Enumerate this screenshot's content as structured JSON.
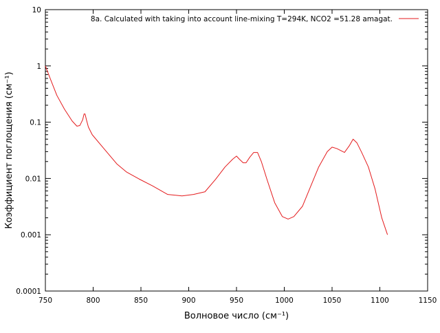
{
  "chart_data": {
    "type": "line",
    "title": "",
    "xlabel": "Волновое число (см⁻¹)",
    "ylabel": "Коэффициент поглощения (см⁻¹)",
    "xlim": [
      750,
      1150
    ],
    "ylim": [
      0.0001,
      10
    ],
    "yscale": "log",
    "grid": false,
    "legend_position": "top-right",
    "x_ticks": [
      750,
      800,
      850,
      900,
      950,
      1000,
      1050,
      1100,
      1150
    ],
    "x_tick_labels": [
      "750",
      "800",
      "850",
      "900",
      "950",
      "1000",
      "1050",
      "1100",
      "1150"
    ],
    "y_ticks": [
      0.0001,
      0.001,
      0.01,
      0.1,
      1,
      10
    ],
    "y_tick_labels": [
      "0.0001",
      "0.001",
      "0.01",
      "0.1",
      "1",
      "10"
    ],
    "series": [
      {
        "name": "8a. Calculated with taking into account line-mixing T=294K, NCO2 =51.28 amagat.",
        "color": "#e41a1c",
        "x": [
          750,
          755,
          762,
          770,
          778,
          783,
          786,
          789,
          790.5,
          791.5,
          793,
          795,
          799,
          810,
          825,
          835,
          848,
          862,
          878,
          893,
          905,
          917,
          928,
          938,
          946,
          950,
          953,
          957,
          960,
          964,
          968,
          972,
          976,
          982,
          990,
          998,
          1004,
          1010,
          1019,
          1028,
          1036,
          1045,
          1050,
          1055,
          1063,
          1068,
          1072,
          1076,
          1081,
          1088,
          1095,
          1102,
          1108
        ],
        "y": [
          1.0,
          0.6,
          0.3,
          0.17,
          0.105,
          0.085,
          0.087,
          0.11,
          0.14,
          0.14,
          0.11,
          0.082,
          0.06,
          0.036,
          0.018,
          0.013,
          0.0098,
          0.0074,
          0.0052,
          0.0049,
          0.0052,
          0.0058,
          0.0096,
          0.016,
          0.022,
          0.025,
          0.022,
          0.019,
          0.019,
          0.024,
          0.029,
          0.029,
          0.02,
          0.0095,
          0.0037,
          0.0021,
          0.0019,
          0.0021,
          0.0032,
          0.0075,
          0.016,
          0.03,
          0.036,
          0.034,
          0.029,
          0.038,
          0.05,
          0.043,
          0.029,
          0.016,
          0.0065,
          0.002,
          0.001
        ]
      }
    ]
  },
  "colors": {
    "series": "#e41a1c",
    "axis": "#000000",
    "background": "#ffffff"
  }
}
